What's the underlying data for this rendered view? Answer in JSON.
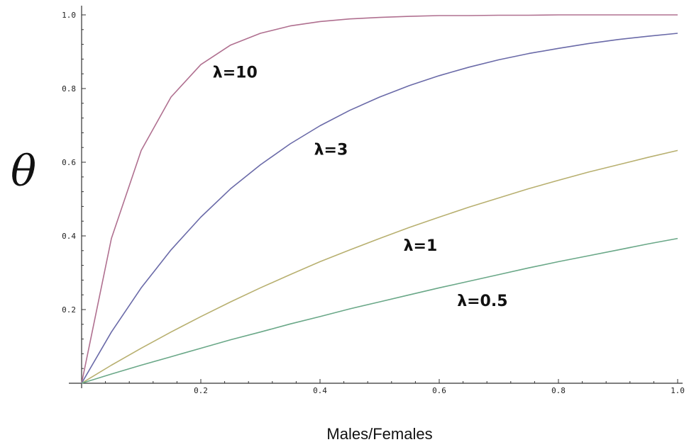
{
  "chart_data": {
    "type": "line",
    "title": "",
    "xlabel": "Males/Females",
    "ylabel": "θ",
    "xlim": [
      0,
      1
    ],
    "ylim": [
      0,
      1
    ],
    "grid": false,
    "x_ticks": [
      0.2,
      0.4,
      0.6,
      0.8,
      1.0
    ],
    "x_tick_labels": [
      "0.2",
      "0.4",
      "0.6",
      "0.8",
      "1.0"
    ],
    "y_ticks": [
      0.2,
      0.4,
      0.6,
      0.8,
      1.0
    ],
    "y_tick_labels": [
      "0.2",
      "0.4",
      "0.6",
      "0.8",
      "1.0"
    ],
    "x": [
      0,
      0.05,
      0.1,
      0.15,
      0.2,
      0.25,
      0.3,
      0.35,
      0.4,
      0.45,
      0.5,
      0.55,
      0.6,
      0.65,
      0.7,
      0.75,
      0.8,
      0.85,
      0.9,
      0.95,
      1.0
    ],
    "series": [
      {
        "name": "λ=10",
        "color": "#b07090",
        "values": [
          0,
          0.393,
          0.632,
          0.777,
          0.865,
          0.918,
          0.95,
          0.97,
          0.982,
          0.989,
          0.993,
          0.996,
          0.998,
          0.998,
          0.999,
          0.999,
          1.0,
          1.0,
          1.0,
          1.0,
          1.0
        ]
      },
      {
        "name": "λ=3",
        "color": "#6a6aa8",
        "values": [
          0,
          0.139,
          0.259,
          0.362,
          0.451,
          0.528,
          0.593,
          0.65,
          0.699,
          0.741,
          0.777,
          0.808,
          0.835,
          0.858,
          0.878,
          0.895,
          0.909,
          0.922,
          0.933,
          0.942,
          0.95
        ]
      },
      {
        "name": "λ=1",
        "color": "#b8b070",
        "values": [
          0,
          0.049,
          0.095,
          0.139,
          0.181,
          0.221,
          0.259,
          0.295,
          0.33,
          0.362,
          0.393,
          0.423,
          0.451,
          0.478,
          0.503,
          0.528,
          0.551,
          0.573,
          0.593,
          0.613,
          0.632
        ]
      },
      {
        "name": "λ=0.5",
        "color": "#6aa888",
        "values": [
          0,
          0.025,
          0.049,
          0.072,
          0.095,
          0.118,
          0.139,
          0.161,
          0.181,
          0.202,
          0.221,
          0.24,
          0.259,
          0.277,
          0.295,
          0.313,
          0.33,
          0.346,
          0.362,
          0.378,
          0.393
        ]
      }
    ],
    "annotations": [
      {
        "text": "λ=10",
        "x": 0.22,
        "y": 0.83
      },
      {
        "text": "λ=3",
        "x": 0.39,
        "y": 0.62
      },
      {
        "text": "λ=1",
        "x": 0.54,
        "y": 0.36
      },
      {
        "text": "λ=0.5",
        "x": 0.63,
        "y": 0.21
      }
    ]
  }
}
